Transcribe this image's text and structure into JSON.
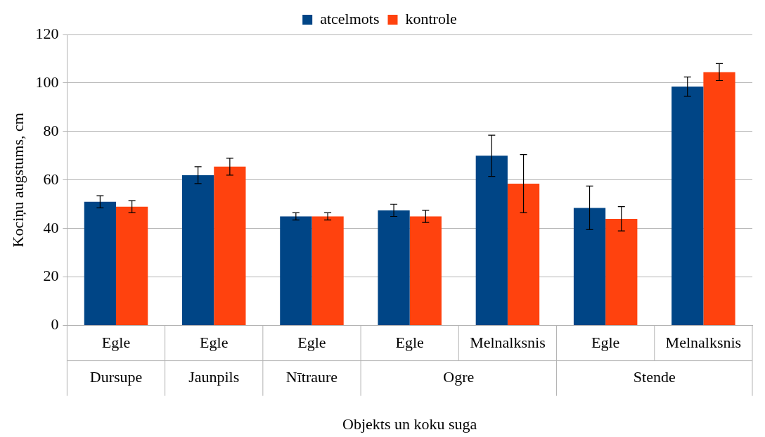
{
  "chart_data": {
    "type": "bar",
    "xlabel": "Objekts un koku suga",
    "ylabel": "Kociņu augstums, cm",
    "categories": [
      "Egle",
      "Egle",
      "Egle",
      "Egle",
      "Melnalksnis",
      "Egle",
      "Melnalksnis"
    ],
    "series": [
      {
        "name": "atcelmots",
        "color": "#004586",
        "values": [
          51,
          62,
          45,
          47.5,
          70,
          48.5,
          98.5
        ],
        "errors": [
          2.5,
          3.5,
          1.5,
          2.5,
          8.5,
          9,
          4
        ]
      },
      {
        "name": "kontrole",
        "color": "#ff420e",
        "values": [
          49,
          65.5,
          45,
          45,
          58.5,
          44,
          104.5
        ],
        "errors": [
          2.5,
          3.5,
          1.5,
          2.5,
          12,
          5,
          3.5
        ]
      }
    ],
    "annotations": [
      "Dursupe",
      "Jaunpils",
      "Nītraure",
      "Ogre",
      "Stende"
    ],
    "ylim": [
      0,
      120
    ],
    "yticks": [
      0,
      20,
      40,
      60,
      80,
      100,
      120
    ],
    "grid": "y",
    "legend": "top"
  }
}
